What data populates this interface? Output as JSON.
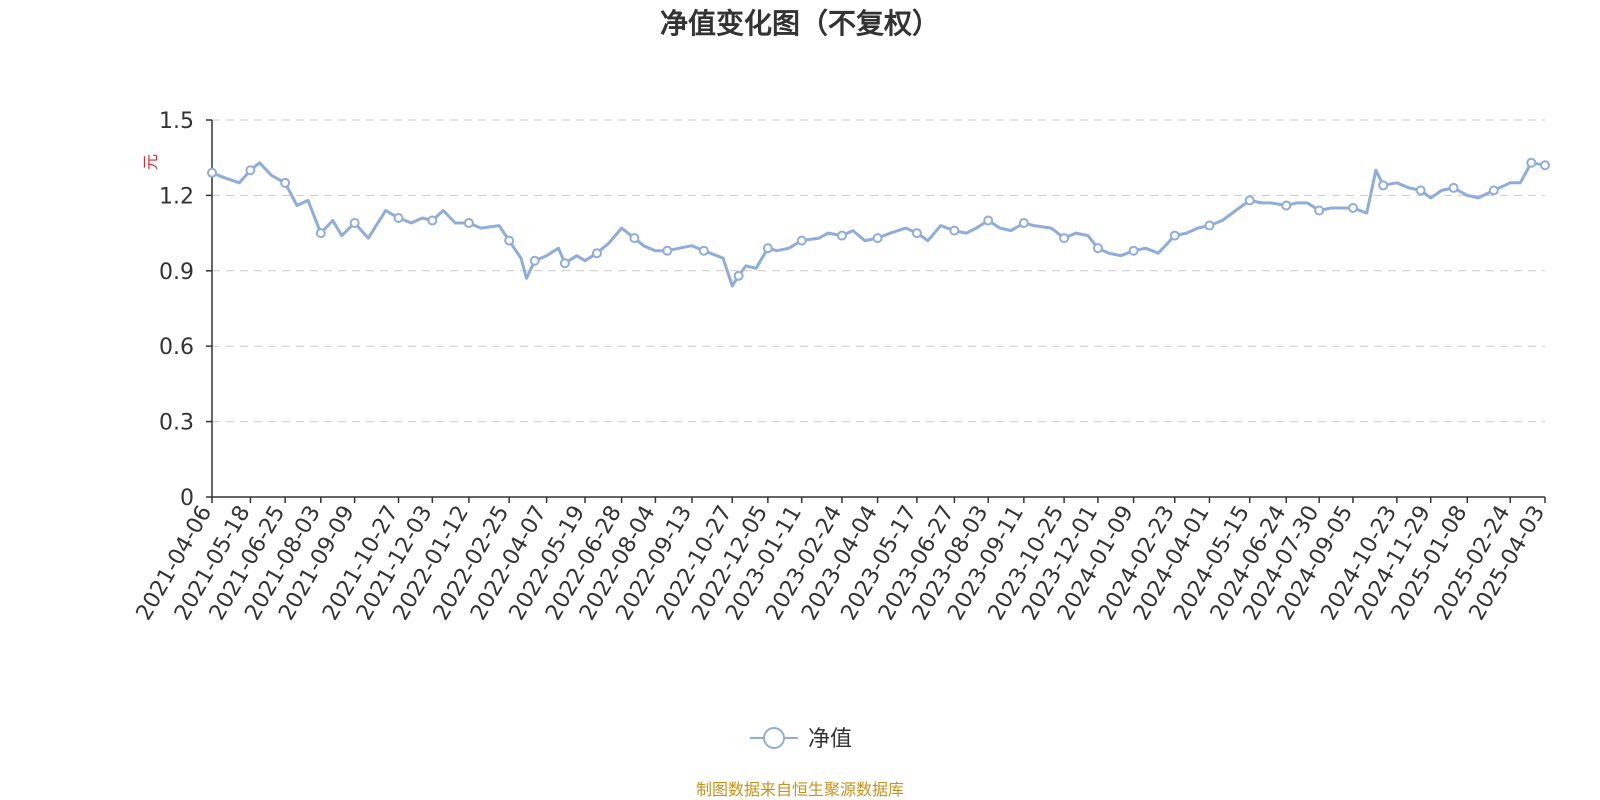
{
  "title": "净值变化图（不复权）",
  "source_note": "制图数据来自恒生聚源数据库",
  "colors": {
    "series": "#8eaddc",
    "grid": "#cccccc",
    "axis": "#333333",
    "unit": "#e0262b",
    "source": "#c8921c"
  },
  "chart_data": {
    "type": "line",
    "title": "净值变化图（不复权）",
    "ylabel": "元",
    "xlabel": "",
    "ylim": [
      0,
      1.5
    ],
    "yticks": [
      "0",
      "0.3",
      "0.6",
      "0.9",
      "1.2",
      "1.5"
    ],
    "grid": true,
    "legend_position": "bottom-center",
    "xticks": [
      "2021-04-06",
      "2021-05-18",
      "2021-06-25",
      "2021-08-03",
      "2021-09-09",
      "2021-10-27",
      "2021-12-03",
      "2022-01-12",
      "2022-02-25",
      "2022-04-07",
      "2022-05-19",
      "2022-06-28",
      "2022-08-04",
      "2022-09-13",
      "2022-10-27",
      "2022-12-05",
      "2023-01-11",
      "2023-02-24",
      "2023-04-04",
      "2023-05-17",
      "2023-06-27",
      "2023-08-03",
      "2023-09-11",
      "2023-10-25",
      "2023-12-01",
      "2024-01-09",
      "2024-02-23",
      "2024-04-01",
      "2024-05-15",
      "2024-06-24",
      "2024-07-30",
      "2024-09-05",
      "2024-10-23",
      "2024-11-29",
      "2025-01-08",
      "2025-02-24",
      "2025-04-03"
    ],
    "series": [
      {
        "name": "净值",
        "x": [
          "2021-04-06",
          "2021-04-20",
          "2021-05-06",
          "2021-05-18",
          "2021-05-28",
          "2021-06-10",
          "2021-06-25",
          "2021-07-08",
          "2021-07-20",
          "2021-08-03",
          "2021-08-16",
          "2021-08-26",
          "2021-09-09",
          "2021-09-24",
          "2021-10-13",
          "2021-10-27",
          "2021-11-10",
          "2021-11-22",
          "2021-12-03",
          "2021-12-15",
          "2021-12-28",
          "2022-01-12",
          "2022-01-25",
          "2022-02-14",
          "2022-02-25",
          "2022-03-10",
          "2022-03-16",
          "2022-03-25",
          "2022-04-07",
          "2022-04-20",
          "2022-04-27",
          "2022-05-10",
          "2022-05-19",
          "2022-06-01",
          "2022-06-14",
          "2022-06-28",
          "2022-07-12",
          "2022-07-22",
          "2022-08-04",
          "2022-08-17",
          "2022-08-30",
          "2022-09-13",
          "2022-09-26",
          "2022-10-17",
          "2022-10-27",
          "2022-11-03",
          "2022-11-11",
          "2022-11-22",
          "2022-12-05",
          "2022-12-15",
          "2022-12-28",
          "2023-01-11",
          "2023-01-30",
          "2023-02-09",
          "2023-02-24",
          "2023-03-08",
          "2023-03-21",
          "2023-04-04",
          "2023-04-18",
          "2023-05-05",
          "2023-05-17",
          "2023-05-29",
          "2023-06-12",
          "2023-06-27",
          "2023-07-10",
          "2023-07-21",
          "2023-08-03",
          "2023-08-16",
          "2023-08-28",
          "2023-09-11",
          "2023-09-22",
          "2023-10-11",
          "2023-10-25",
          "2023-11-07",
          "2023-11-20",
          "2023-12-01",
          "2023-12-13",
          "2023-12-26",
          "2024-01-09",
          "2024-01-22",
          "2024-02-05",
          "2024-02-23",
          "2024-03-07",
          "2024-03-19",
          "2024-04-01",
          "2024-04-15",
          "2024-04-26",
          "2024-05-15",
          "2024-05-28",
          "2024-06-07",
          "2024-06-24",
          "2024-07-05",
          "2024-07-17",
          "2024-07-30",
          "2024-08-12",
          "2024-08-23",
          "2024-09-05",
          "2024-09-20",
          "2024-09-30",
          "2024-10-08",
          "2024-10-23",
          "2024-11-05",
          "2024-11-18",
          "2024-11-29",
          "2024-12-11",
          "2024-12-24",
          "2025-01-08",
          "2025-01-20",
          "2025-02-06",
          "2025-02-24",
          "2025-03-07",
          "2025-03-19",
          "2025-04-03"
        ],
        "values": [
          1.29,
          1.27,
          1.25,
          1.3,
          1.33,
          1.28,
          1.25,
          1.16,
          1.18,
          1.05,
          1.1,
          1.04,
          1.09,
          1.03,
          1.14,
          1.11,
          1.09,
          1.11,
          1.1,
          1.14,
          1.09,
          1.09,
          1.07,
          1.08,
          1.02,
          0.95,
          0.87,
          0.94,
          0.96,
          0.99,
          0.93,
          0.96,
          0.94,
          0.97,
          1.01,
          1.07,
          1.03,
          1.0,
          0.98,
          0.98,
          0.99,
          1.0,
          0.98,
          0.95,
          0.84,
          0.88,
          0.92,
          0.91,
          0.99,
          0.98,
          0.99,
          1.02,
          1.03,
          1.05,
          1.04,
          1.06,
          1.02,
          1.03,
          1.05,
          1.07,
          1.05,
          1.02,
          1.08,
          1.06,
          1.05,
          1.07,
          1.1,
          1.07,
          1.06,
          1.09,
          1.08,
          1.07,
          1.03,
          1.05,
          1.04,
          0.99,
          0.97,
          0.96,
          0.98,
          0.99,
          0.97,
          1.04,
          1.05,
          1.07,
          1.08,
          1.1,
          1.13,
          1.18,
          1.17,
          1.17,
          1.16,
          1.17,
          1.17,
          1.14,
          1.15,
          1.15,
          1.15,
          1.13,
          1.3,
          1.24,
          1.25,
          1.23,
          1.22,
          1.19,
          1.22,
          1.23,
          1.2,
          1.19,
          1.22,
          1.25,
          1.25,
          1.33,
          1.32
        ]
      }
    ]
  }
}
